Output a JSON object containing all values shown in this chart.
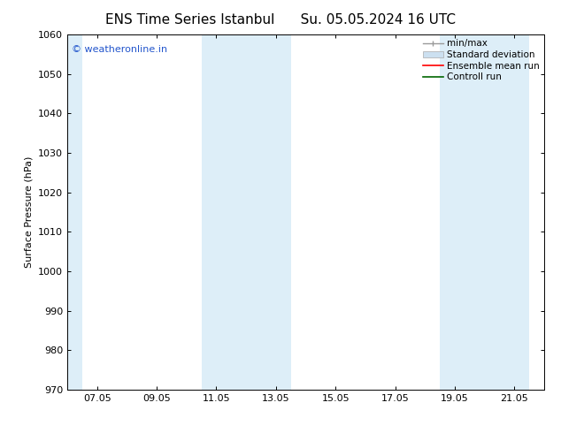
{
  "title_left": "ENS Time Series Istanbul",
  "title_right": "Su. 05.05.2024 16 UTC",
  "ylabel": "Surface Pressure (hPa)",
  "ylim": [
    970,
    1060
  ],
  "yticks": [
    970,
    980,
    990,
    1000,
    1010,
    1020,
    1030,
    1040,
    1050,
    1060
  ],
  "xtick_labels": [
    "07.05",
    "09.05",
    "11.05",
    "13.05",
    "15.05",
    "17.05",
    "19.05",
    "21.05"
  ],
  "xmin": 0.0,
  "xmax": 16.0,
  "shaded_bands": [
    {
      "x_start": 0.0,
      "x_end": 0.5,
      "color": "#ddeef8"
    },
    {
      "x_start": 4.5,
      "x_end": 7.5,
      "color": "#ddeef8"
    },
    {
      "x_start": 12.5,
      "x_end": 15.5,
      "color": "#ddeef8"
    }
  ],
  "xtick_positions": [
    1.0,
    3.0,
    5.0,
    7.0,
    9.0,
    11.0,
    13.0,
    15.0
  ],
  "watermark_text": "© weatheronline.in",
  "watermark_color": "#2255cc",
  "watermark_fontsize": 8,
  "bg_color": "#ffffff",
  "plot_bg_color": "#ffffff",
  "tick_color": "#000000",
  "title_fontsize": 11,
  "ylabel_fontsize": 8,
  "legend_fontsize": 7.5,
  "legend_entries": [
    {
      "label": "min/max",
      "color": "#999999",
      "style": "line_with_cap"
    },
    {
      "label": "Standard deviation",
      "color": "#cce0f0",
      "style": "filled_rect"
    },
    {
      "label": "Ensemble mean run",
      "color": "#ff0000",
      "style": "line"
    },
    {
      "label": "Controll run",
      "color": "#006600",
      "style": "line"
    }
  ]
}
